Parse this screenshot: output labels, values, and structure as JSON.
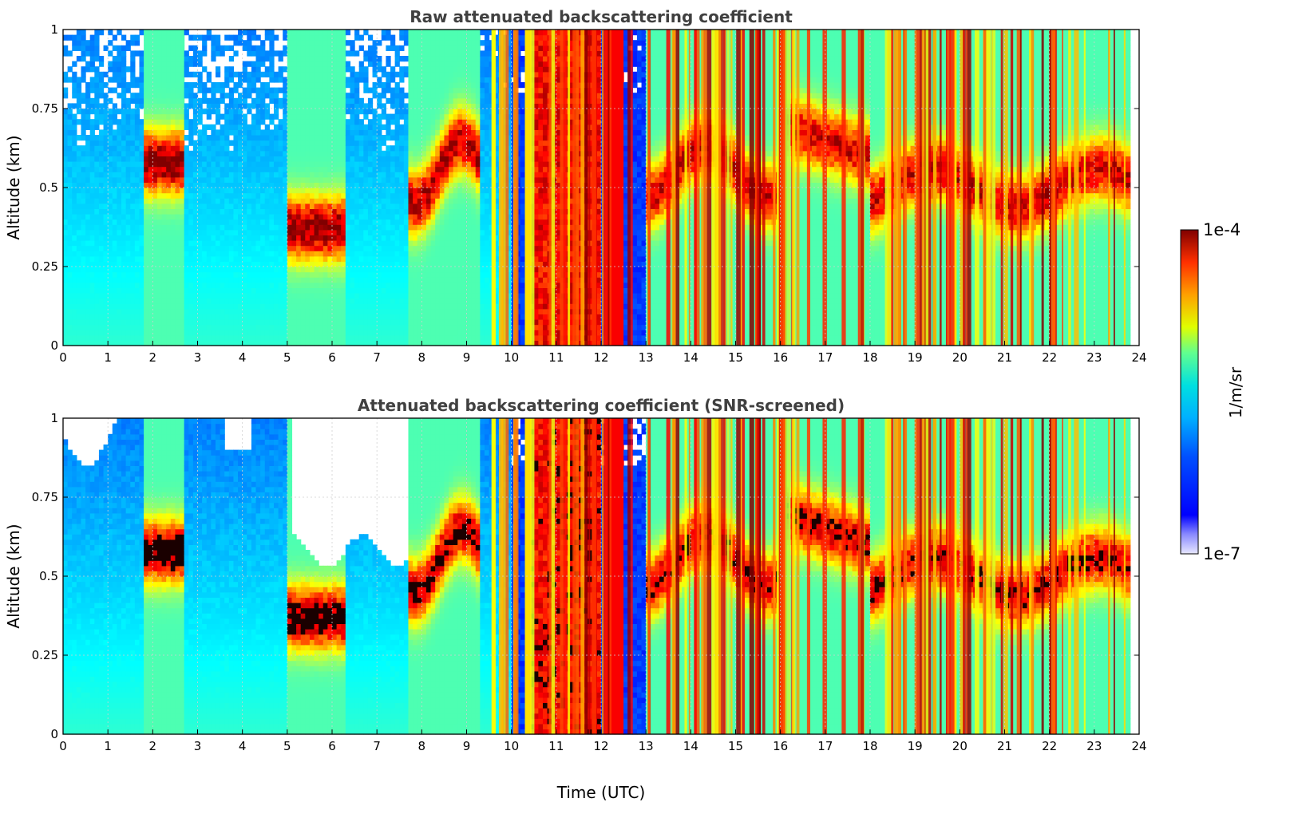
{
  "chart_data": [
    {
      "type": "heatmap",
      "title": "Raw attenuated backscattering coefficient",
      "xlabel": "",
      "ylabel": "Altitude (km)",
      "xlim": [
        0,
        24
      ],
      "ylim": [
        0,
        1
      ],
      "xticks": [
        "0",
        "1",
        "2",
        "3",
        "4",
        "5",
        "6",
        "7",
        "8",
        "9",
        "10",
        "11",
        "12",
        "13",
        "14",
        "15",
        "16",
        "17",
        "18",
        "19",
        "20",
        "21",
        "22",
        "23",
        "24"
      ],
      "yticks": [
        "0",
        "0.25",
        "0.5",
        "0.75",
        "1"
      ],
      "grid": true,
      "screened": false,
      "features": [
        {
          "kind": "cloud_layer",
          "t_start": 1.8,
          "t_end": 2.6,
          "alt_bottom": 0.45,
          "alt_top": 0.68
        },
        {
          "kind": "cloud_layer",
          "t_start": 5.0,
          "t_end": 6.3,
          "alt_bottom": 0.3,
          "alt_top": 0.45
        },
        {
          "kind": "cloud_layer",
          "t_start": 7.8,
          "t_end": 9.2,
          "alt_bottom": 0.4,
          "alt_top": 0.85
        },
        {
          "kind": "precipitation",
          "t_start": 10.4,
          "t_end": 12.0,
          "alt_bottom": 0.0,
          "alt_top": 1.0
        },
        {
          "kind": "cloud_layer",
          "t_start": 16.0,
          "t_end": 23.8,
          "alt_bottom": 0.35,
          "alt_top": 0.85
        }
      ]
    },
    {
      "type": "heatmap",
      "title": "Attenuated backscattering coefficient (SNR-screened)",
      "xlabel": "Time (UTC)",
      "ylabel": "Altitude (km)",
      "xlim": [
        0,
        24
      ],
      "ylim": [
        0,
        1
      ],
      "xticks": [
        "0",
        "1",
        "2",
        "3",
        "4",
        "5",
        "6",
        "7",
        "8",
        "9",
        "10",
        "11",
        "12",
        "13",
        "14",
        "15",
        "16",
        "17",
        "18",
        "19",
        "20",
        "21",
        "22",
        "23",
        "24"
      ],
      "yticks": [
        "0",
        "0.25",
        "0.5",
        "0.75",
        "1"
      ],
      "grid": true,
      "screened": true
    }
  ],
  "colorbar": {
    "min_label": "1e-7",
    "max_label": "1e-4",
    "label": "1/m/sr",
    "scale": "log",
    "colormap": "jet"
  }
}
